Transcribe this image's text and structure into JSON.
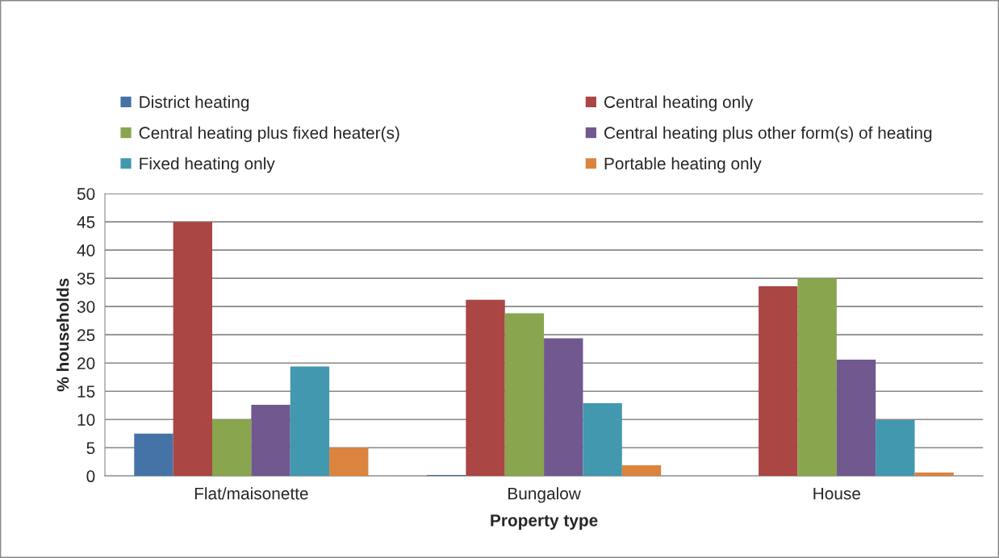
{
  "chart_data": {
    "type": "bar",
    "xlabel": "Property type",
    "ylabel": "% households",
    "categories": [
      "Flat/maisonette",
      "Bungalow",
      "House"
    ],
    "series": [
      {
        "name": "District heating",
        "color": "#4572a7",
        "values": [
          7.5,
          0.2,
          0
        ]
      },
      {
        "name": "Central heating only",
        "color": "#aa4643",
        "values": [
          45,
          31.2,
          33.6
        ]
      },
      {
        "name": "Central heating plus fixed heater(s)",
        "color": "#89a54e",
        "values": [
          10.0,
          28.8,
          35.0
        ]
      },
      {
        "name": "Central heating plus other form(s) of heating",
        "color": "#71588f",
        "values": [
          12.6,
          24.4,
          20.6
        ]
      },
      {
        "name": "Fixed heating only",
        "color": "#4198af",
        "values": [
          19.4,
          12.9,
          9.9
        ]
      },
      {
        "name": "Portable heating only",
        "color": "#db843d",
        "values": [
          5.0,
          1.9,
          0.6
        ]
      }
    ],
    "ylim": [
      0,
      50
    ],
    "yticks": [
      0,
      5,
      10,
      15,
      20,
      25,
      30,
      35,
      40,
      45,
      50
    ],
    "grid": "y",
    "legend": "top"
  }
}
